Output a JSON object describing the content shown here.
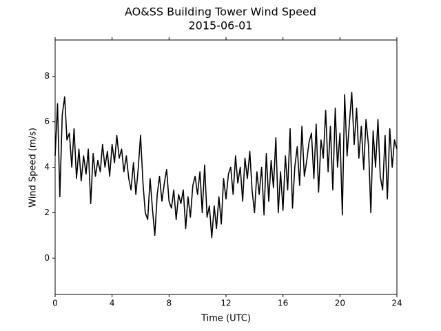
{
  "chart_data": {
    "type": "line",
    "title": "AO&SS Building Tower Wind Speed",
    "subtitle": "2015-06-01",
    "x_label": "Time (UTC)",
    "y_label": "Wind Speed (m/s)",
    "xlim": [
      0,
      24
    ],
    "xticks": [
      0,
      4,
      8,
      12,
      16,
      20,
      24
    ],
    "ylim": [
      -1.6,
      9.6
    ],
    "yticks": [
      0,
      2,
      4,
      6,
      8
    ],
    "grid": false,
    "series": [
      {
        "name": "Wind Speed",
        "color": "#000000",
        "x": [
          0,
          0.17,
          0.33,
          0.5,
          0.67,
          0.83,
          1,
          1.17,
          1.33,
          1.5,
          1.67,
          1.83,
          2,
          2.17,
          2.33,
          2.5,
          2.67,
          2.83,
          3,
          3.17,
          3.33,
          3.5,
          3.67,
          3.83,
          4,
          4.17,
          4.33,
          4.5,
          4.67,
          4.83,
          5,
          5.17,
          5.33,
          5.5,
          5.67,
          5.83,
          6,
          6.17,
          6.33,
          6.5,
          6.67,
          6.83,
          7,
          7.17,
          7.33,
          7.5,
          7.67,
          7.83,
          8,
          8.17,
          8.33,
          8.5,
          8.67,
          8.83,
          9,
          9.17,
          9.33,
          9.5,
          9.67,
          9.83,
          10,
          10.17,
          10.33,
          10.5,
          10.67,
          10.83,
          11,
          11.17,
          11.33,
          11.5,
          11.67,
          11.83,
          12,
          12.17,
          12.33,
          12.5,
          12.67,
          12.83,
          13,
          13.17,
          13.33,
          13.5,
          13.67,
          13.83,
          14,
          14.17,
          14.33,
          14.5,
          14.67,
          14.83,
          15,
          15.17,
          15.33,
          15.5,
          15.67,
          15.83,
          16,
          16.17,
          16.33,
          16.5,
          16.67,
          16.83,
          17,
          17.17,
          17.33,
          17.5,
          17.67,
          17.83,
          18,
          18.17,
          18.33,
          18.5,
          18.67,
          18.83,
          19,
          19.17,
          19.33,
          19.5,
          19.67,
          19.83,
          20,
          20.17,
          20.33,
          20.5,
          20.67,
          20.83,
          21,
          21.17,
          21.33,
          21.5,
          21.67,
          21.83,
          22,
          22.17,
          22.33,
          22.5,
          22.67,
          22.83,
          23,
          23.17,
          23.33,
          23.5,
          23.67,
          23.83,
          24
        ],
        "values": [
          4.5,
          6.8,
          2.7,
          6.3,
          7.1,
          5.2,
          5.5,
          4.0,
          5.7,
          3.5,
          4.8,
          3.4,
          4.5,
          3.7,
          4.8,
          2.4,
          4.6,
          3.6,
          4.3,
          3.8,
          5.0,
          4.0,
          4.7,
          3.6,
          5.0,
          4.2,
          5.4,
          4.4,
          4.8,
          3.8,
          4.5,
          3.5,
          3.0,
          4.2,
          2.8,
          3.9,
          5.4,
          3.3,
          2.0,
          1.7,
          3.5,
          2.2,
          1.0,
          2.8,
          3.6,
          2.5,
          3.3,
          3.9,
          2.5,
          2.2,
          3.0,
          1.7,
          2.8,
          2.4,
          3.0,
          1.3,
          2.7,
          1.8,
          3.2,
          3.6,
          2.8,
          3.8,
          2.0,
          4.1,
          1.8,
          2.3,
          0.9,
          2.3,
          1.3,
          2.7,
          1.5,
          3.5,
          2.6,
          3.7,
          4.0,
          2.8,
          4.5,
          3.3,
          4.0,
          2.5,
          4.4,
          3.5,
          4.7,
          3.0,
          2.0,
          3.8,
          2.8,
          4.0,
          1.9,
          4.6,
          2.5,
          4.3,
          3.1,
          5.3,
          2.0,
          3.8,
          2.1,
          4.5,
          3.0,
          5.7,
          2.2,
          4.0,
          4.9,
          3.2,
          5.8,
          3.6,
          4.3,
          5.1,
          5.5,
          3.5,
          5.9,
          2.9,
          5.2,
          4.4,
          6.5,
          3.8,
          5.8,
          3.0,
          6.6,
          4.0,
          5.5,
          1.9,
          7.2,
          4.5,
          6.0,
          7.3,
          5.0,
          6.6,
          4.4,
          5.8,
          3.9,
          6.1,
          5.0,
          2.0,
          5.6,
          4.0,
          6.1,
          3.6,
          3.0,
          5.4,
          2.6,
          5.7,
          4.0,
          5.2,
          4.8
        ]
      }
    ]
  }
}
